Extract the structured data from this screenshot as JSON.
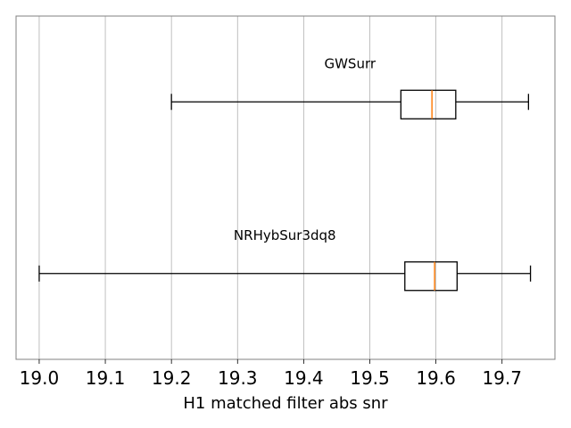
{
  "chart_data": {
    "type": "boxplot",
    "orientation": "horizontal",
    "xlabel": "H1 matched filter abs snr",
    "xlim": [
      18.965,
      19.78
    ],
    "xticks": [
      19.0,
      19.1,
      19.2,
      19.3,
      19.4,
      19.5,
      19.6,
      19.7
    ],
    "xtick_labels": [
      "19.0",
      "19.1",
      "19.2",
      "19.3",
      "19.4",
      "19.5",
      "19.6",
      "19.7"
    ],
    "grid": "vertical",
    "colors": {
      "box": "#000000",
      "median": "#ff7f0e",
      "grid": "#b0b0b0",
      "frame": "#808080"
    },
    "series": [
      {
        "name": "GWSurr",
        "whisker_low": 19.2,
        "q1": 19.547,
        "median": 19.594,
        "q3": 19.63,
        "whisker_high": 19.74
      },
      {
        "name": "NRHybSur3dq8",
        "whisker_low": 19.0,
        "q1": 19.553,
        "median": 19.598,
        "q3": 19.632,
        "whisker_high": 19.743
      }
    ]
  }
}
